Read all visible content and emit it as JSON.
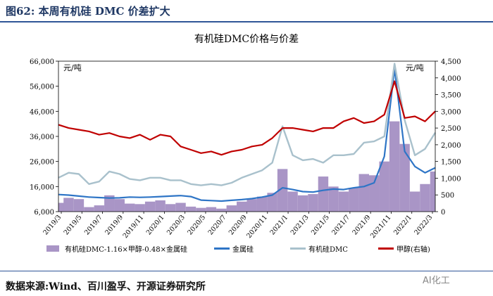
{
  "figure_title": "图62:  本周有机硅 DMC 价差扩大",
  "source_note": "数据来源:Wind、百川盈孚、开源证券研究所",
  "watermark": "AI化工",
  "colors": {
    "spread": "#a995c6",
    "silicon": "#2e75c6",
    "dmc": "#a9c1cc",
    "methanol": "#c00000",
    "title_blue": "#1f3864"
  },
  "chart_data": {
    "type": "line",
    "title": "有机硅DMC价格与价差",
    "ylabel_left": "元/吨",
    "ylabel_right": "元/吨",
    "ylim_left": [
      6000,
      66000
    ],
    "ylim_right": [
      0,
      4500
    ],
    "yticks_left": [
      "66,000",
      "56,000",
      "46,000",
      "36,000",
      "26,000",
      "16,000",
      "6,000"
    ],
    "yticks_right": [
      "4,500",
      "4,000",
      "3,500",
      "3,000",
      "2,500",
      "2,000",
      "1,500",
      "1,000",
      "500",
      "0"
    ],
    "x_ticks": [
      "2019/3",
      "2019/5",
      "2019/7",
      "2019/9",
      "2019/11",
      "2020/1",
      "2020/3",
      "2020/5",
      "2020/7",
      "2020/9",
      "2020/11",
      "2021/1",
      "2021/3",
      "2021/5",
      "2021/7",
      "2021/9",
      "2021/11",
      "2022/1",
      "2022/3"
    ],
    "x_index_range": [
      0,
      37
    ],
    "series": [
      {
        "name": "有机硅DMC-1.16×甲醇-0.48×金属硅",
        "kind": "area",
        "axis": "left",
        "x": [
          0,
          1,
          2,
          3,
          4,
          5,
          6,
          7,
          8,
          9,
          10,
          11,
          12,
          13,
          14,
          15,
          16,
          17,
          18,
          19,
          20,
          21,
          22,
          23,
          24,
          25,
          26,
          27,
          28,
          29,
          30,
          31,
          32,
          33,
          34,
          35,
          36,
          37
        ],
        "values": [
          9500,
          11500,
          11000,
          7800,
          8500,
          12500,
          11000,
          9200,
          9000,
          10000,
          10500,
          9000,
          9500,
          8000,
          7500,
          7800,
          7200,
          8500,
          10000,
          11000,
          12000,
          13500,
          23000,
          14000,
          12500,
          13000,
          20000,
          16000,
          14000,
          15500,
          21000,
          20500,
          26000,
          42000,
          33000,
          14000,
          17000,
          22000
        ]
      },
      {
        "name": "金属硅",
        "kind": "line",
        "axis": "left",
        "x": [
          0,
          1,
          2,
          3,
          4,
          5,
          6,
          7,
          8,
          9,
          10,
          11,
          12,
          13,
          14,
          15,
          16,
          17,
          18,
          19,
          20,
          21,
          22,
          23,
          24,
          25,
          26,
          27,
          28,
          29,
          30,
          31,
          32,
          33,
          34,
          35,
          36,
          37
        ],
        "values": [
          12800,
          12600,
          12200,
          11800,
          11600,
          11400,
          11500,
          11800,
          11700,
          11800,
          12000,
          12200,
          12400,
          12000,
          10600,
          10400,
          10200,
          10500,
          10800,
          11200,
          11800,
          12600,
          15500,
          14800,
          14000,
          13800,
          14500,
          15000,
          14800,
          15500,
          16000,
          17500,
          28000,
          63000,
          30000,
          24000,
          21500,
          23500
        ]
      },
      {
        "name": "有机硅DMC",
        "kind": "line",
        "axis": "left",
        "x": [
          0,
          1,
          2,
          3,
          4,
          5,
          6,
          7,
          8,
          9,
          10,
          11,
          12,
          13,
          14,
          15,
          16,
          17,
          18,
          19,
          20,
          21,
          22,
          23,
          24,
          25,
          26,
          27,
          28,
          29,
          30,
          31,
          32,
          33,
          34,
          35,
          36,
          37
        ],
        "values": [
          19500,
          21500,
          21000,
          17000,
          18000,
          22000,
          21000,
          19000,
          18500,
          19500,
          19500,
          18500,
          18500,
          17000,
          16500,
          17000,
          16500,
          17500,
          19500,
          21000,
          22500,
          25500,
          40000,
          28500,
          26500,
          27000,
          25500,
          28500,
          28500,
          29000,
          33500,
          34000,
          36000,
          65000,
          42500,
          28500,
          31000,
          37500
        ]
      },
      {
        "name": "甲醇(右轴)",
        "kind": "line",
        "axis": "right",
        "x": [
          0,
          1,
          2,
          3,
          4,
          5,
          6,
          7,
          8,
          9,
          10,
          11,
          12,
          13,
          14,
          15,
          16,
          17,
          18,
          19,
          20,
          21,
          22,
          23,
          24,
          25,
          26,
          27,
          28,
          29,
          30,
          31,
          32,
          33,
          34,
          35,
          36,
          37
        ],
        "values": [
          2600,
          2500,
          2450,
          2400,
          2300,
          2350,
          2250,
          2200,
          2300,
          2150,
          2300,
          2250,
          1950,
          1850,
          1750,
          1800,
          1700,
          1800,
          1850,
          1950,
          2000,
          2200,
          2500,
          2500,
          2450,
          2400,
          2500,
          2500,
          2700,
          2800,
          2650,
          2700,
          2900,
          3900,
          2800,
          2850,
          2700,
          3000
        ]
      }
    ]
  }
}
